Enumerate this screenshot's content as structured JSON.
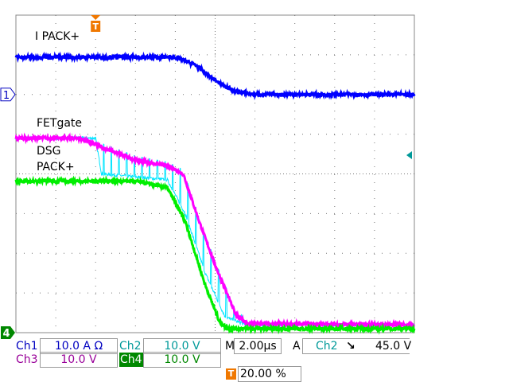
{
  "chart_data": {
    "type": "line",
    "xlabel": "",
    "ylabel": "",
    "x_unit": "µs",
    "xlim": [
      -4,
      16
    ],
    "ylim_div": [
      -4,
      4
    ],
    "grid": true,
    "trace_labels": [
      "I PACK+",
      "FETgate",
      "DSG",
      "PACK+"
    ],
    "series": [
      {
        "name": "I PACK+",
        "channel": "Ch1",
        "color": "#0000ff",
        "points": [
          [
            -4,
            2.94
          ],
          [
            4,
            2.94
          ],
          [
            5,
            2.75
          ],
          [
            6,
            2.35
          ],
          [
            7,
            2.08
          ],
          [
            8,
            2.0
          ],
          [
            16,
            2.0
          ]
        ]
      },
      {
        "name": "FETgate",
        "channel": "Ch3",
        "color": "#ff00ff",
        "points": [
          [
            -4,
            0.9
          ],
          [
            -0.8,
            0.9
          ],
          [
            0.4,
            0.65
          ],
          [
            2,
            0.35
          ],
          [
            3.6,
            0.2
          ],
          [
            4.4,
            0
          ],
          [
            5.2,
            -1.2
          ],
          [
            6,
            -2.3
          ],
          [
            7,
            -3.5
          ],
          [
            7.6,
            -3.78
          ],
          [
            16,
            -3.8
          ]
        ]
      },
      {
        "name": "DSG",
        "channel": "Ch2",
        "color": "#00e5ff",
        "points": [
          [
            -4,
            0.9
          ],
          [
            0,
            0.9
          ],
          [
            0.3,
            0.0
          ],
          [
            3.6,
            -0.15
          ],
          [
            4.5,
            -1.0
          ],
          [
            5.5,
            -2.5
          ],
          [
            6.5,
            -3.6
          ],
          [
            7.5,
            -3.8
          ],
          [
            16,
            -3.8
          ]
        ]
      },
      {
        "name": "PACK+",
        "channel": "Ch4",
        "color": "#00ee00",
        "points": [
          [
            -4,
            -0.18
          ],
          [
            2,
            -0.18
          ],
          [
            3.6,
            -0.35
          ],
          [
            4.5,
            -1.2
          ],
          [
            5.5,
            -2.8
          ],
          [
            6.2,
            -3.7
          ],
          [
            6.6,
            -3.9
          ],
          [
            16,
            -3.9
          ]
        ]
      }
    ]
  },
  "markers": {
    "ch1": "1",
    "ch4": "4",
    "trigger": "T"
  },
  "status": {
    "ch1_label": "Ch1",
    "ch1_scale": "10.0 A Ω",
    "ch2_label": "Ch2",
    "ch2_scale": "10.0 V",
    "ch3_label": "Ch3",
    "ch3_scale": "10.0 V",
    "ch4_label": "Ch4",
    "ch4_scale": "10.0 V",
    "timebase_label": "M",
    "timebase": "2.00µs",
    "trigger_label": "A",
    "trigger_source": "Ch2",
    "trigger_slope": "↘",
    "trigger_level": "45.0 V",
    "trigger_position": "20.00 %"
  },
  "colors": {
    "ch1": "#0000c0",
    "ch2": "#009999",
    "ch3": "#990099",
    "ch4": "#008800",
    "trigger": "#f07800"
  }
}
